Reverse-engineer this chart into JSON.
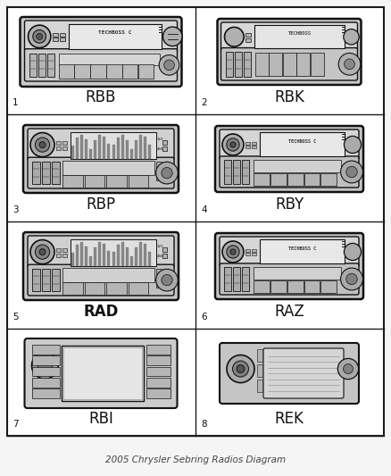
{
  "title": "2005 Chrysler Sebring Radios Diagram",
  "background_color": "#f5f5f5",
  "border_color": "#000000",
  "grid_rows": 4,
  "grid_cols": 2,
  "cells": [
    {
      "number": "1",
      "label": "RBB",
      "label_bold": false,
      "row": 0,
      "col": 0
    },
    {
      "number": "2",
      "label": "RBK",
      "label_bold": false,
      "row": 0,
      "col": 1
    },
    {
      "number": "3",
      "label": "RBP",
      "label_bold": false,
      "row": 1,
      "col": 0
    },
    {
      "number": "4",
      "label": "RBY",
      "label_bold": false,
      "row": 1,
      "col": 1
    },
    {
      "number": "5",
      "label": "RAD",
      "label_bold": true,
      "row": 2,
      "col": 0
    },
    {
      "number": "6",
      "label": "RAZ",
      "label_bold": false,
      "row": 2,
      "col": 1
    },
    {
      "number": "7",
      "label": "RBI",
      "label_bold": false,
      "row": 3,
      "col": 0
    },
    {
      "number": "8",
      "label": "REK",
      "label_bold": false,
      "row": 3,
      "col": 1
    }
  ],
  "label_fontsize": 12,
  "number_fontsize": 7.5,
  "lc": "#1a1a1a",
  "body_fill": "#e0e0e0",
  "dark_fill": "#2a2a2a",
  "mid_fill": "#888888",
  "light_fill": "#d8d8d8",
  "white_fill": "#f2f2f2",
  "black_fill": "#111111"
}
